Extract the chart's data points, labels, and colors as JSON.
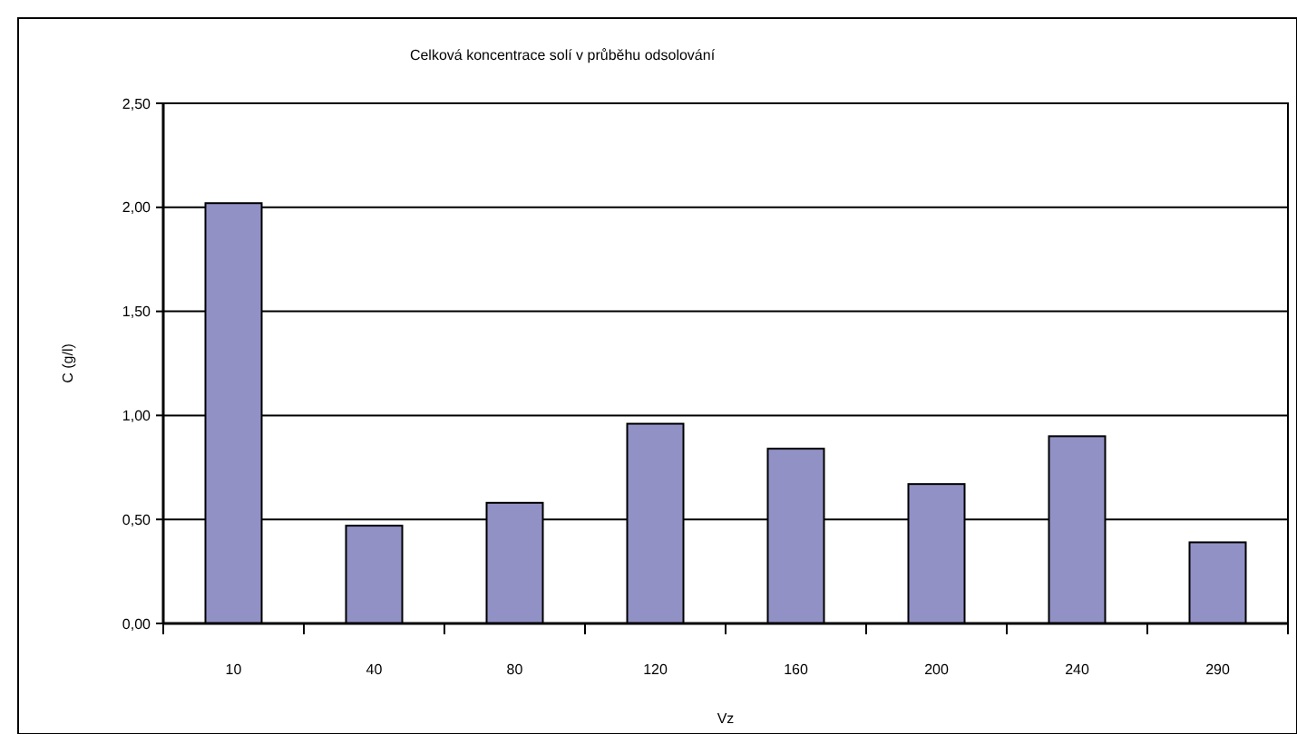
{
  "chart_data": {
    "type": "bar",
    "title": "Celková koncentrace solí  v průběhu odsolování",
    "xlabel": "Vz",
    "ylabel": "C (g/l)",
    "categories": [
      "10",
      "40",
      "80",
      "120",
      "160",
      "200",
      "240",
      "290"
    ],
    "values": [
      2.02,
      0.47,
      0.58,
      0.96,
      0.84,
      0.67,
      0.9,
      0.39
    ],
    "color": "#9191c6",
    "ylim": [
      0,
      2.5
    ],
    "yticks": [
      {
        "value": 0,
        "label": "0,00"
      },
      {
        "value": 0.5,
        "label": "0,50"
      },
      {
        "value": 1,
        "label": "1,00"
      },
      {
        "value": 1.5,
        "label": "1,50"
      },
      {
        "value": 2,
        "label": "2,00"
      },
      {
        "value": 2.5,
        "label": "2,50"
      }
    ],
    "grid": "y"
  }
}
